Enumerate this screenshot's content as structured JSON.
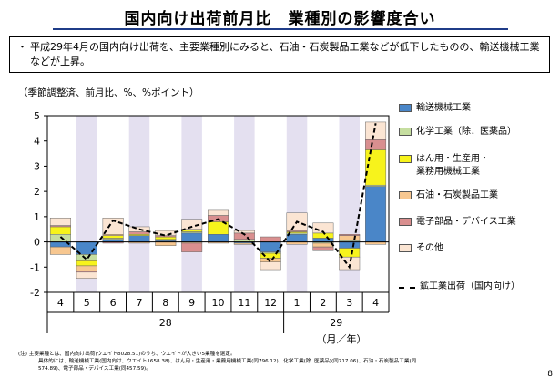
{
  "title": "国内向け出荷前月比　業種別の影響度合い",
  "summary": "平成29年4月の国内向け出荷を、主要業種別にみると、石油・石炭製品工業などが低下したものの、輸送機械工業などが上昇。",
  "summary_bullet": "・",
  "unit_label": "（季節調整済、前月比、%、%ポイント）",
  "page_number": "8",
  "notes": [
    "(注) 主要業種とは、国内向け出荷(ウエイト8028.51)のうち、ウエイトが大きい5業種を選定。",
    "具体的には、輸送機械工業(国内向け、ウエイト1658.38)、はん用・生産用・業務用機械工業(同796.12)、化学工業(除. 医薬品)(同717.06)、石油・石炭製品工業(同",
    "574.89)、電子部品・デバイス工業(同457.59)。"
  ],
  "chart_data": {
    "type": "bar",
    "stacked": true,
    "categories": [
      "4",
      "5",
      "6",
      "7",
      "8",
      "9",
      "10",
      "11",
      "12",
      "1",
      "2",
      "3",
      "4"
    ],
    "year_labels": [
      "28",
      "29"
    ],
    "year_spans": [
      [
        0,
        8
      ],
      [
        9,
        12
      ]
    ],
    "shaded_categories": [
      1,
      3,
      5,
      7,
      9,
      11
    ],
    "xlabel": "（月／年）",
    "ylim": [
      -2,
      5
    ],
    "yticks": [
      "-2",
      "-1",
      "0",
      "1",
      "2",
      "3",
      "4",
      "5"
    ],
    "series": [
      {
        "name": "輸送機械工業",
        "color": "#4a86c8",
        "values": [
          -0.2,
          -0.5,
          0.1,
          0.25,
          0.05,
          0.35,
          0.3,
          -0.05,
          -0.4,
          0.3,
          0.15,
          -0.25,
          2.2
        ]
      },
      {
        "name": "化学工業（除．医薬品）",
        "color": "#c6dea0",
        "values": [
          0.3,
          -0.25,
          0.05,
          0.0,
          0.05,
          0.05,
          0.0,
          0.1,
          -0.05,
          0.05,
          -0.05,
          0.05,
          0.05
        ]
      },
      {
        "name": "はん用・生産用・業務用機械工業",
        "color": "#f7f31c",
        "values": [
          0.3,
          -0.2,
          0.1,
          0.05,
          0.1,
          0.1,
          0.5,
          0.0,
          -0.2,
          0.05,
          0.2,
          -0.35,
          1.4
        ]
      },
      {
        "name": "石油・石炭製品工業",
        "color": "#f7c790",
        "values": [
          -0.3,
          -0.2,
          0.05,
          -0.05,
          -0.15,
          -0.05,
          -0.05,
          -0.05,
          -0.15,
          -0.1,
          -0.15,
          0.2,
          -0.1
        ]
      },
      {
        "name": "電子部品・デバイス工業",
        "color": "#d98f8f",
        "values": [
          0.05,
          -0.05,
          -0.05,
          0.1,
          0.05,
          -0.35,
          0.25,
          0.25,
          0.2,
          0.05,
          -0.15,
          0.05,
          0.4
        ]
      },
      {
        "name": "その他",
        "color": "#fbe5d3",
        "values": [
          0.3,
          -0.25,
          0.65,
          0.2,
          0.2,
          0.4,
          0.2,
          0.1,
          -0.3,
          0.7,
          0.4,
          -0.5,
          0.7
        ]
      }
    ],
    "line_series": {
      "name": "鉱工業出荷（国内向け）",
      "values": [
        0.2,
        -0.7,
        0.85,
        0.5,
        0.25,
        0.6,
        0.9,
        0.3,
        -0.8,
        0.8,
        0.4,
        -1.0,
        4.7
      ]
    }
  }
}
